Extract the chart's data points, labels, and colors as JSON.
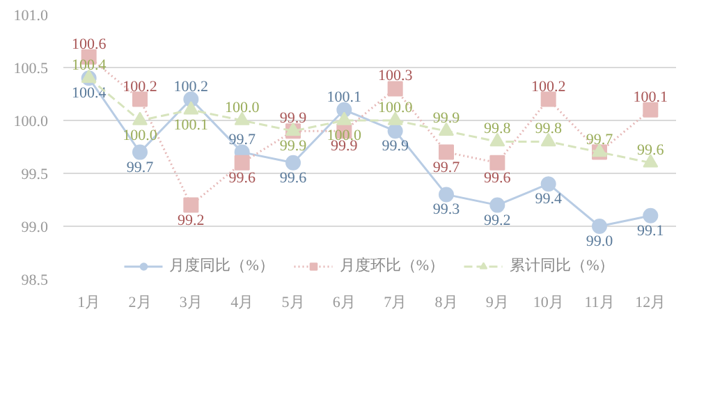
{
  "chart_data": {
    "type": "line",
    "categories": [
      "1月",
      "2月",
      "3月",
      "4月",
      "5月",
      "6月",
      "7月",
      "8月",
      "9月",
      "10月",
      "11月",
      "12月"
    ],
    "series": [
      {
        "name": "月度同比（%）",
        "color": "#b8cce4",
        "marker": "circle",
        "line_style": "solid",
        "values": [
          100.4,
          99.7,
          100.2,
          99.7,
          99.6,
          100.1,
          99.9,
          99.3,
          99.2,
          99.4,
          99.0,
          99.1
        ],
        "value_labels": [
          "100.4",
          "99.7",
          "100.2",
          "99.7",
          "99.6",
          "100.1",
          "99.9",
          "99.3",
          "99.2",
          "99.4",
          "99.0",
          "99.1"
        ]
      },
      {
        "name": "月度环比（%）",
        "color": "#e6b9b8",
        "marker": "square",
        "line_style": "dotted",
        "values": [
          100.6,
          100.2,
          99.2,
          99.6,
          99.9,
          99.9,
          100.3,
          99.7,
          99.6,
          100.2,
          99.7,
          100.1
        ],
        "value_labels": [
          "100.6",
          "100.2",
          "99.2",
          "99.6",
          "99.9",
          "99.9",
          "100.3",
          "99.7",
          "99.6",
          "100.2",
          null,
          "100.1"
        ]
      },
      {
        "name": "累计同比（%）",
        "color": "#d7e4bd",
        "marker": "triangle",
        "line_style": "dashed",
        "values": [
          100.4,
          100.0,
          100.1,
          100.0,
          99.9,
          100.0,
          100.0,
          99.9,
          99.8,
          99.8,
          99.7,
          99.6
        ],
        "value_labels": [
          "100.4",
          "100.0",
          "100.1",
          "100.0",
          "99.9",
          "100.0",
          "100.0",
          "99.9",
          "99.8",
          "99.8",
          "99.7",
          "99.6"
        ]
      }
    ],
    "ylim": [
      98.5,
      101.0
    ],
    "yticks": [
      {
        "value": 98.5,
        "label": "98.5"
      },
      {
        "value": 99.0,
        "label": "99.0"
      },
      {
        "value": 99.5,
        "label": "99.5"
      },
      {
        "value": 100.0,
        "label": "100.0"
      },
      {
        "value": 100.5,
        "label": "100.5"
      },
      {
        "value": 101.0,
        "label": "101.0"
      }
    ],
    "grid": "y",
    "legend": "bottom"
  }
}
